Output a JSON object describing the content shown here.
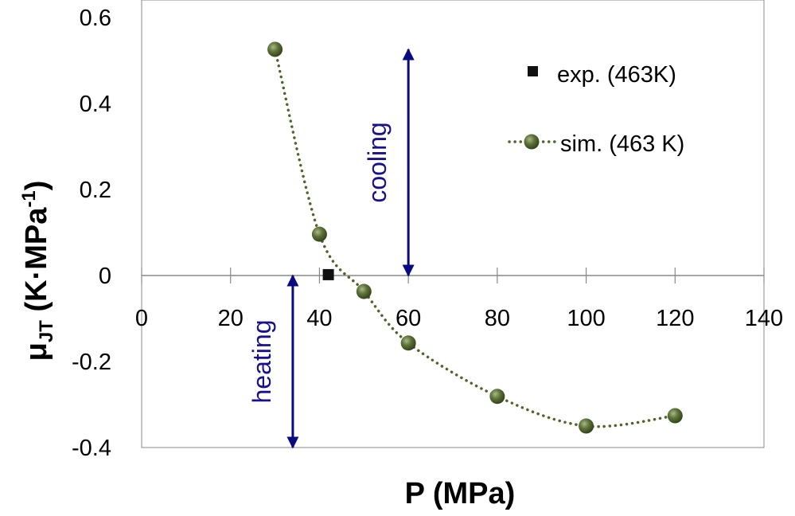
{
  "chart_data": {
    "type": "scatter",
    "title": "",
    "xlabel": "P (MPa)",
    "ylabel_main": "μ",
    "ylabel_sub": "JT",
    "ylabel_units": " (K·MPa",
    "ylabel_sup": "-1",
    "ylabel_close": ")",
    "xlim": [
      0,
      140
    ],
    "ylim": [
      -0.4,
      0.6
    ],
    "x_ticks": [
      0,
      20,
      40,
      60,
      80,
      100,
      120,
      140
    ],
    "y_ticks": [
      -0.4,
      -0.2,
      0,
      0.2,
      0.4,
      0.6
    ],
    "x_tick_labels": [
      "0",
      "20",
      "40",
      "60",
      "80",
      "100",
      "120",
      "140"
    ],
    "y_tick_labels": [
      "-0.4",
      "-0.2",
      "0",
      "0.2",
      "0.4",
      "0.6"
    ],
    "grid": false,
    "legend_position": "top-right",
    "series": [
      {
        "name": "exp. (463K)",
        "marker": "square",
        "color": "#111111",
        "x": [
          42
        ],
        "y": [
          0.002
        ]
      },
      {
        "name": "sim. (463 K)",
        "marker": "sphere",
        "line": "dotted",
        "color": "#556b2f",
        "x": [
          30,
          40,
          50,
          60,
          80,
          100,
          120
        ],
        "y": [
          0.526,
          0.096,
          -0.037,
          -0.157,
          -0.281,
          -0.35,
          -0.326
        ]
      }
    ],
    "annotations": [
      {
        "text": "cooling",
        "color": "#1a0f8c",
        "arrow_x": 60,
        "arrow_from": 0,
        "arrow_to": 0.526
      },
      {
        "text": "heating",
        "color": "#1a0f8c",
        "arrow_x": 34,
        "arrow_from": -0.4,
        "arrow_to": 0
      }
    ]
  }
}
